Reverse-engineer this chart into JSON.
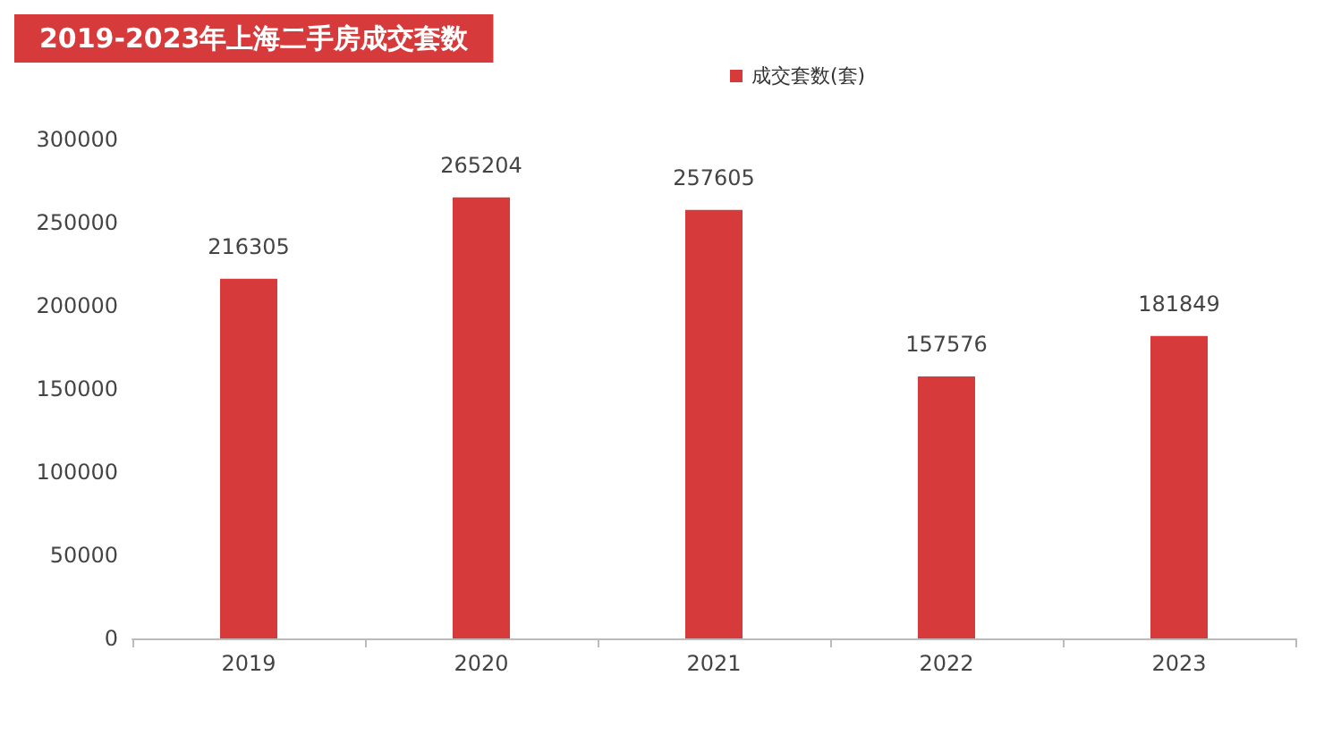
{
  "chart_data": {
    "type": "bar",
    "title": "2019-2023年上海二手房成交套数",
    "categories": [
      "2019",
      "2020",
      "2021",
      "2022",
      "2023"
    ],
    "series": [
      {
        "name": "成交套数(套)",
        "color": "#d63a3a",
        "values": [
          216305,
          265204,
          257605,
          157576,
          181849
        ]
      }
    ],
    "ylim": [
      0,
      300000
    ],
    "yticks": [
      0,
      50000,
      100000,
      150000,
      200000,
      250000,
      300000
    ],
    "data_labels": true,
    "legend": "top right",
    "grid": false
  }
}
